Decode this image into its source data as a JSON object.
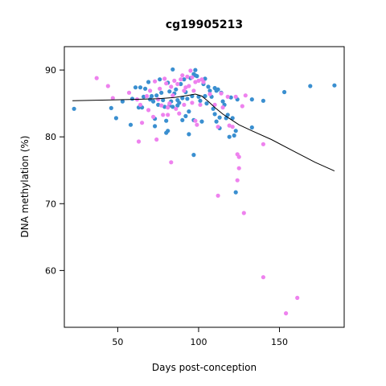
{
  "chart_data": {
    "type": "scatter",
    "title": "cg19905213",
    "xlabel": "Days post-conception",
    "ylabel": "DNA methylation (%)",
    "xlim": [
      17,
      190
    ],
    "ylim": [
      51.5,
      93.5
    ],
    "xticks": [
      50,
      100,
      150
    ],
    "yticks": [
      60,
      70,
      80,
      90
    ],
    "grid": false,
    "colors": {
      "blue_series": "#3a8fd0",
      "pink_series": "#ee82ee",
      "trend_line": "#000000"
    },
    "series": [
      {
        "color": "#3a8fd0",
        "points": [
          [
            23,
            84.2
          ],
          [
            46,
            84.3
          ],
          [
            49,
            82.8
          ],
          [
            53,
            85.3
          ],
          [
            58,
            81.8
          ],
          [
            59,
            85.7
          ],
          [
            61,
            87.4
          ],
          [
            63,
            84.4
          ],
          [
            64,
            87.4
          ],
          [
            65,
            84.4
          ],
          [
            66,
            86.0
          ],
          [
            67,
            87.2
          ],
          [
            69,
            88.2
          ],
          [
            70,
            85.6
          ],
          [
            71,
            86.1
          ],
          [
            72,
            85.3
          ],
          [
            73,
            82.7
          ],
          [
            73,
            81.6
          ],
          [
            74,
            86.2
          ],
          [
            75,
            84.8
          ],
          [
            76,
            88.6
          ],
          [
            77,
            86.6
          ],
          [
            78,
            85.5
          ],
          [
            79,
            84.5
          ],
          [
            80,
            82.4
          ],
          [
            80,
            80.6
          ],
          [
            81,
            88.1
          ],
          [
            81,
            80.9
          ],
          [
            82,
            84.7
          ],
          [
            82,
            86.8
          ],
          [
            83,
            85.3
          ],
          [
            84,
            90.1
          ],
          [
            84,
            84.5
          ],
          [
            85,
            86.5
          ],
          [
            86,
            87.1
          ],
          [
            87,
            85.5
          ],
          [
            87,
            84.7
          ],
          [
            88,
            85.1
          ],
          [
            89,
            87.9
          ],
          [
            90,
            82.5
          ],
          [
            90,
            85.8
          ],
          [
            91,
            88.6
          ],
          [
            92,
            86.7
          ],
          [
            92,
            83.1
          ],
          [
            93,
            85.7
          ],
          [
            94,
            83.8
          ],
          [
            94,
            80.4
          ],
          [
            95,
            88.8
          ],
          [
            96,
            86.1
          ],
          [
            97,
            89.4
          ],
          [
            97,
            82.5
          ],
          [
            97,
            77.3
          ],
          [
            98,
            90.0
          ],
          [
            98,
            89.2
          ],
          [
            99,
            89.1
          ],
          [
            100,
            86.0
          ],
          [
            101,
            85.4
          ],
          [
            102,
            82.3
          ],
          [
            103,
            87.9
          ],
          [
            104,
            88.7
          ],
          [
            104,
            86.1
          ],
          [
            105,
            85.0
          ],
          [
            106,
            87.5
          ],
          [
            107,
            86.9
          ],
          [
            108,
            86.0
          ],
          [
            109,
            84.2
          ],
          [
            110,
            87.3
          ],
          [
            110,
            83.4
          ],
          [
            111,
            86.9
          ],
          [
            111,
            82.3
          ],
          [
            112,
            87.1
          ],
          [
            113,
            82.9
          ],
          [
            113,
            81.3
          ],
          [
            114,
            86.6
          ],
          [
            115,
            85.3
          ],
          [
            116,
            84.8
          ],
          [
            117,
            82.8
          ],
          [
            118,
            83.3
          ],
          [
            119,
            80.0
          ],
          [
            120,
            85.9
          ],
          [
            121,
            82.8
          ],
          [
            122,
            80.2
          ],
          [
            123,
            80.9
          ],
          [
            123,
            71.7
          ],
          [
            124,
            85.6
          ],
          [
            133,
            85.6
          ],
          [
            133,
            81.4
          ],
          [
            140,
            85.4
          ],
          [
            153,
            86.7
          ],
          [
            169,
            87.6
          ],
          [
            184,
            87.7
          ]
        ]
      },
      {
        "color": "#ee82ee",
        "points": [
          [
            37,
            88.8
          ],
          [
            44,
            87.6
          ],
          [
            47,
            85.8
          ],
          [
            57,
            86.6
          ],
          [
            62,
            85.6
          ],
          [
            63,
            79.3
          ],
          [
            64,
            84.8
          ],
          [
            65,
            82.1
          ],
          [
            68,
            86.1
          ],
          [
            69,
            84.0
          ],
          [
            70,
            86.9
          ],
          [
            72,
            83.0
          ],
          [
            73,
            88.3
          ],
          [
            74,
            79.6
          ],
          [
            75,
            85.6
          ],
          [
            76,
            87.2
          ],
          [
            77,
            84.7
          ],
          [
            78,
            83.3
          ],
          [
            79,
            88.7
          ],
          [
            80,
            88.0
          ],
          [
            81,
            84.4
          ],
          [
            81,
            83.3
          ],
          [
            82,
            85.0
          ],
          [
            83,
            76.2
          ],
          [
            83,
            87.5
          ],
          [
            84,
            86.2
          ],
          [
            85,
            88.4
          ],
          [
            86,
            84.2
          ],
          [
            87,
            87.9
          ],
          [
            88,
            83.5
          ],
          [
            89,
            88.6
          ],
          [
            90,
            89.2
          ],
          [
            91,
            84.8
          ],
          [
            91,
            86.9
          ],
          [
            92,
            87.4
          ],
          [
            93,
            89.0
          ],
          [
            94,
            87.6
          ],
          [
            95,
            89.9
          ],
          [
            96,
            88.9
          ],
          [
            96,
            85.1
          ],
          [
            97,
            86.9
          ],
          [
            98,
            82.4
          ],
          [
            98,
            88.2
          ],
          [
            99,
            81.8
          ],
          [
            100,
            88.4
          ],
          [
            101,
            84.8
          ],
          [
            102,
            88.6
          ],
          [
            103,
            88.2
          ],
          [
            107,
            86.4
          ],
          [
            110,
            84.8
          ],
          [
            112,
            81.5
          ],
          [
            112,
            71.2
          ],
          [
            114,
            86.5
          ],
          [
            115,
            84.4
          ],
          [
            118,
            86.0
          ],
          [
            119,
            81.7
          ],
          [
            121,
            81.5
          ],
          [
            123,
            86.0
          ],
          [
            124,
            77.4
          ],
          [
            124,
            73.5
          ],
          [
            125,
            77.0
          ],
          [
            125,
            75.3
          ],
          [
            127,
            84.6
          ],
          [
            128,
            68.6
          ],
          [
            129,
            86.2
          ],
          [
            140,
            78.9
          ],
          [
            140,
            59.0
          ],
          [
            154,
            53.6
          ],
          [
            161,
            55.9
          ]
        ]
      }
    ],
    "trend_line": [
      [
        22,
        85.4
      ],
      [
        40,
        85.5
      ],
      [
        60,
        85.6
      ],
      [
        75,
        85.7
      ],
      [
        85,
        85.9
      ],
      [
        93,
        86.2
      ],
      [
        98,
        86.4
      ],
      [
        102,
        86.1
      ],
      [
        106,
        85.3
      ],
      [
        110,
        84.4
      ],
      [
        115,
        83.4
      ],
      [
        120,
        82.6
      ],
      [
        125,
        81.8
      ],
      [
        133,
        80.9
      ],
      [
        145,
        79.6
      ],
      [
        160,
        77.7
      ],
      [
        172,
        76.2
      ],
      [
        184,
        74.9
      ]
    ]
  }
}
